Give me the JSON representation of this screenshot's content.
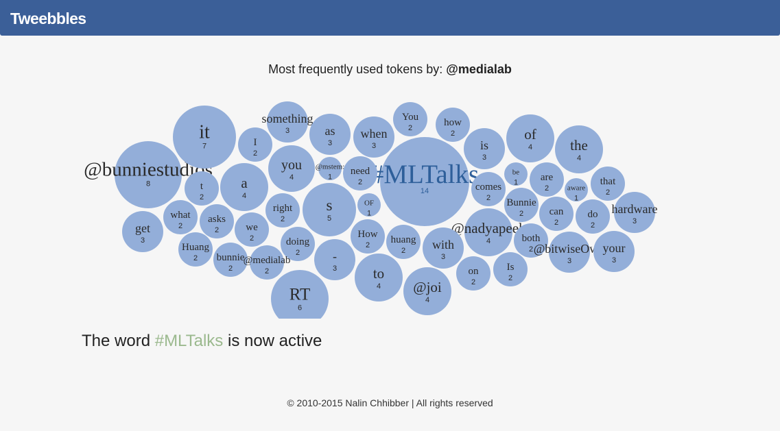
{
  "navbar": {
    "brand": "Tweebbles"
  },
  "heading": {
    "prefix": "Most frequently used tokens by:",
    "user": "@medialab"
  },
  "status": {
    "prefix": "The word",
    "word": "#MLTalks",
    "suffix": "is now active"
  },
  "footer": {
    "text": "© 2010-2015 Nalin Chhibber | All rights reserved"
  },
  "colors": {
    "navbar": "#3b5f98",
    "bubble": "#93aed9",
    "active_text": "#2e5f9a",
    "highlight": "#9bb98e"
  },
  "bubbles": [
    {
      "word": "@bunniestudios",
      "count": 8
    },
    {
      "word": "it",
      "count": 7
    },
    {
      "word": "something",
      "count": 3
    },
    {
      "word": "I",
      "count": 2
    },
    {
      "word": "as",
      "count": 3
    },
    {
      "word": "when",
      "count": 3
    },
    {
      "word": "You",
      "count": 2
    },
    {
      "word": "how",
      "count": 2
    },
    {
      "word": "of",
      "count": 4
    },
    {
      "word": "the",
      "count": 4
    },
    {
      "word": "is",
      "count": 3
    },
    {
      "word": "#MLTalks",
      "count": 14,
      "active": true
    },
    {
      "word": "you",
      "count": 4
    },
    {
      "word": "@mstem:",
      "count": 1
    },
    {
      "word": "need",
      "count": 2
    },
    {
      "word": "t",
      "count": 2
    },
    {
      "word": "a",
      "count": 4
    },
    {
      "word": "be",
      "count": 1
    },
    {
      "word": "are",
      "count": 2
    },
    {
      "word": "that",
      "count": 2
    },
    {
      "word": "aware",
      "count": 1
    },
    {
      "word": "comes",
      "count": 2
    },
    {
      "word": "Bunnie",
      "count": 2
    },
    {
      "word": "what",
      "count": 2
    },
    {
      "word": "asks",
      "count": 2
    },
    {
      "word": "right",
      "count": 2
    },
    {
      "word": "s",
      "count": 5
    },
    {
      "word": "OF",
      "count": 1
    },
    {
      "word": "get",
      "count": 3
    },
    {
      "word": "we",
      "count": 2
    },
    {
      "word": "can",
      "count": 2
    },
    {
      "word": "do",
      "count": 2
    },
    {
      "word": "hardware",
      "count": 3
    },
    {
      "word": "@nadyapeek",
      "count": 4
    },
    {
      "word": "How",
      "count": 2
    },
    {
      "word": "huang",
      "count": 2
    },
    {
      "word": "with",
      "count": 3
    },
    {
      "word": "both",
      "count": 2
    },
    {
      "word": "@bitwiseOwl:",
      "count": 3
    },
    {
      "word": "your",
      "count": 3
    },
    {
      "word": "Huang",
      "count": 2
    },
    {
      "word": "doing",
      "count": 2
    },
    {
      "word": "bunnie",
      "count": 2
    },
    {
      "word": "@medialab",
      "count": 2
    },
    {
      "word": "-",
      "count": 3
    },
    {
      "word": "to",
      "count": 4
    },
    {
      "word": "@joi",
      "count": 4
    },
    {
      "word": "on",
      "count": 2
    },
    {
      "word": "Is",
      "count": 2
    },
    {
      "word": "RT",
      "count": 6
    }
  ]
}
